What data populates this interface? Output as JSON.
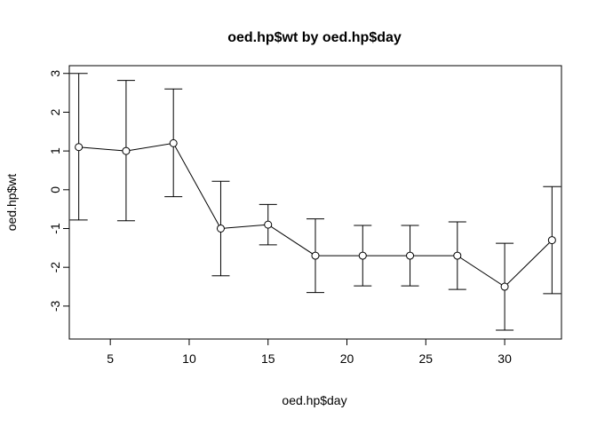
{
  "chart_data": {
    "type": "line",
    "title": "oed.hp$wt by oed.hp$day",
    "xlabel": "oed.hp$day",
    "ylabel": "oed.hp$wt",
    "xlim": [
      2.4,
      33.6
    ],
    "ylim": [
      -3.85,
      3.2
    ],
    "xticks": [
      5,
      10,
      15,
      20,
      25,
      30
    ],
    "yticks": [
      -3,
      -2,
      -1,
      0,
      1,
      2,
      3
    ],
    "grid": false,
    "legend": "none",
    "series": [
      {
        "x": [
          3,
          6,
          9,
          12,
          15,
          18,
          21,
          24,
          27,
          30,
          33
        ],
        "y": [
          1.1,
          1.0,
          1.2,
          -1.0,
          -0.9,
          -1.7,
          -1.7,
          -1.7,
          -1.7,
          -2.5,
          -1.3
        ],
        "upper": [
          3.0,
          2.82,
          2.6,
          0.22,
          -0.38,
          -0.75,
          -0.92,
          -0.92,
          -0.83,
          -1.38,
          0.08
        ],
        "lower": [
          -0.78,
          -0.8,
          -0.18,
          -2.22,
          -1.42,
          -2.65,
          -2.48,
          -2.48,
          -2.57,
          -3.62,
          -2.68
        ]
      }
    ]
  }
}
